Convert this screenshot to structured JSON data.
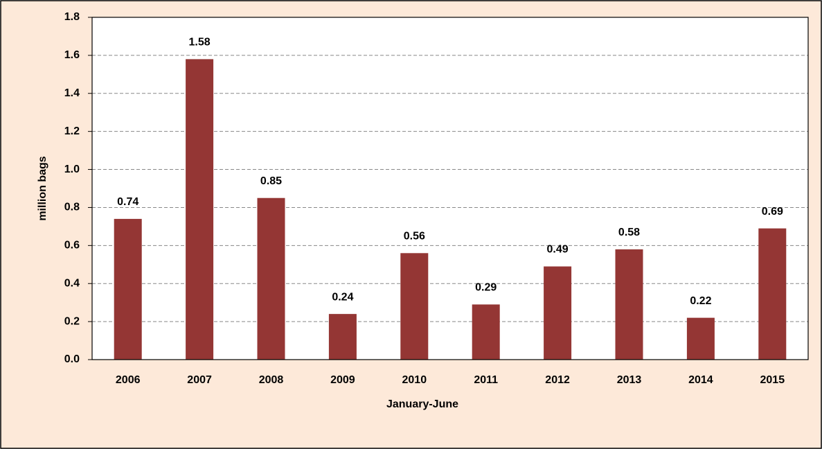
{
  "chart_data": {
    "type": "bar",
    "x_label": "January-June",
    "y_label": "million bags",
    "categories": [
      "2006",
      "2007",
      "2008",
      "2009",
      "2010",
      "2011",
      "2012",
      "2013",
      "2014",
      "2015"
    ],
    "values": [
      0.74,
      1.58,
      0.85,
      0.24,
      0.56,
      0.29,
      0.49,
      0.58,
      0.22,
      0.69
    ],
    "color": "#943634",
    "ylim": [
      0,
      1.8
    ],
    "yticks": [
      {
        "value": 0,
        "label": "0.0"
      },
      0.2,
      0.4,
      0.6,
      0.8,
      {
        "value": 1,
        "label": "1.0"
      },
      1.2,
      1.4,
      1.6,
      1.8
    ],
    "grid": true
  }
}
